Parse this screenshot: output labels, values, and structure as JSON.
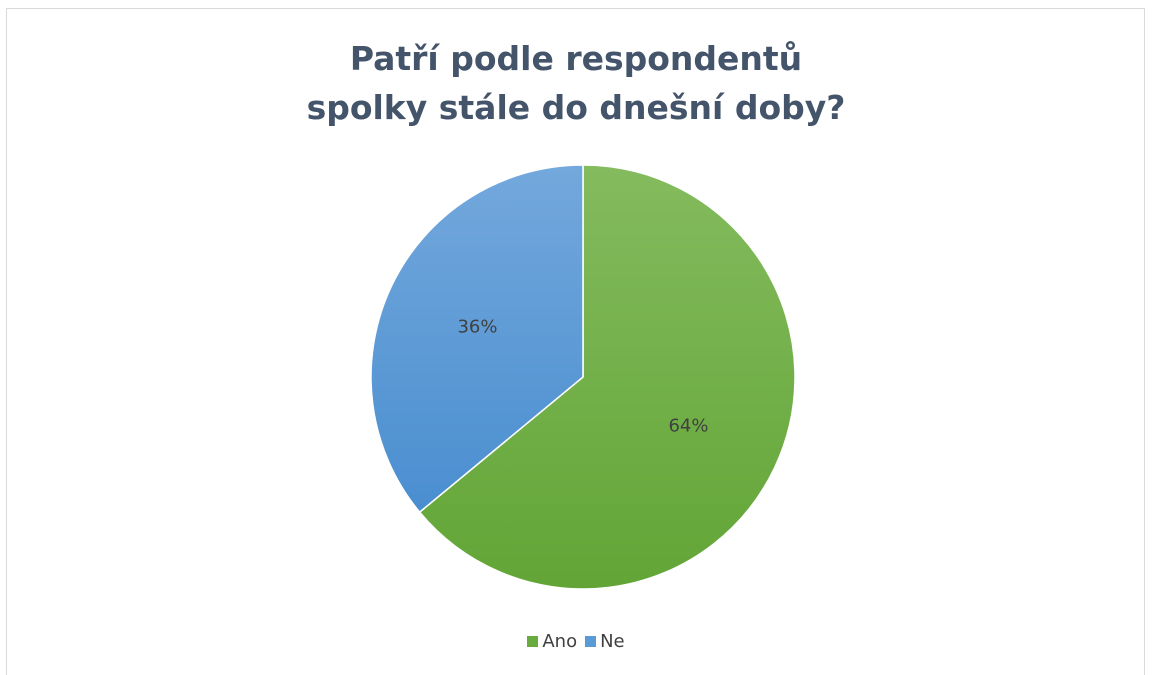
{
  "chart_data": {
    "type": "pie",
    "title": "Patří podle respondentů spolky stále do dnešní doby?",
    "slices": [
      {
        "label": "Ano",
        "value": 64,
        "data_label": "64%",
        "color": "#6aab3f"
      },
      {
        "label": "Ne",
        "value": 36,
        "data_label": "36%",
        "color": "#5b9bd5"
      }
    ],
    "legend": {
      "position": "bottom",
      "entries": [
        "Ano",
        "Ne"
      ]
    }
  }
}
